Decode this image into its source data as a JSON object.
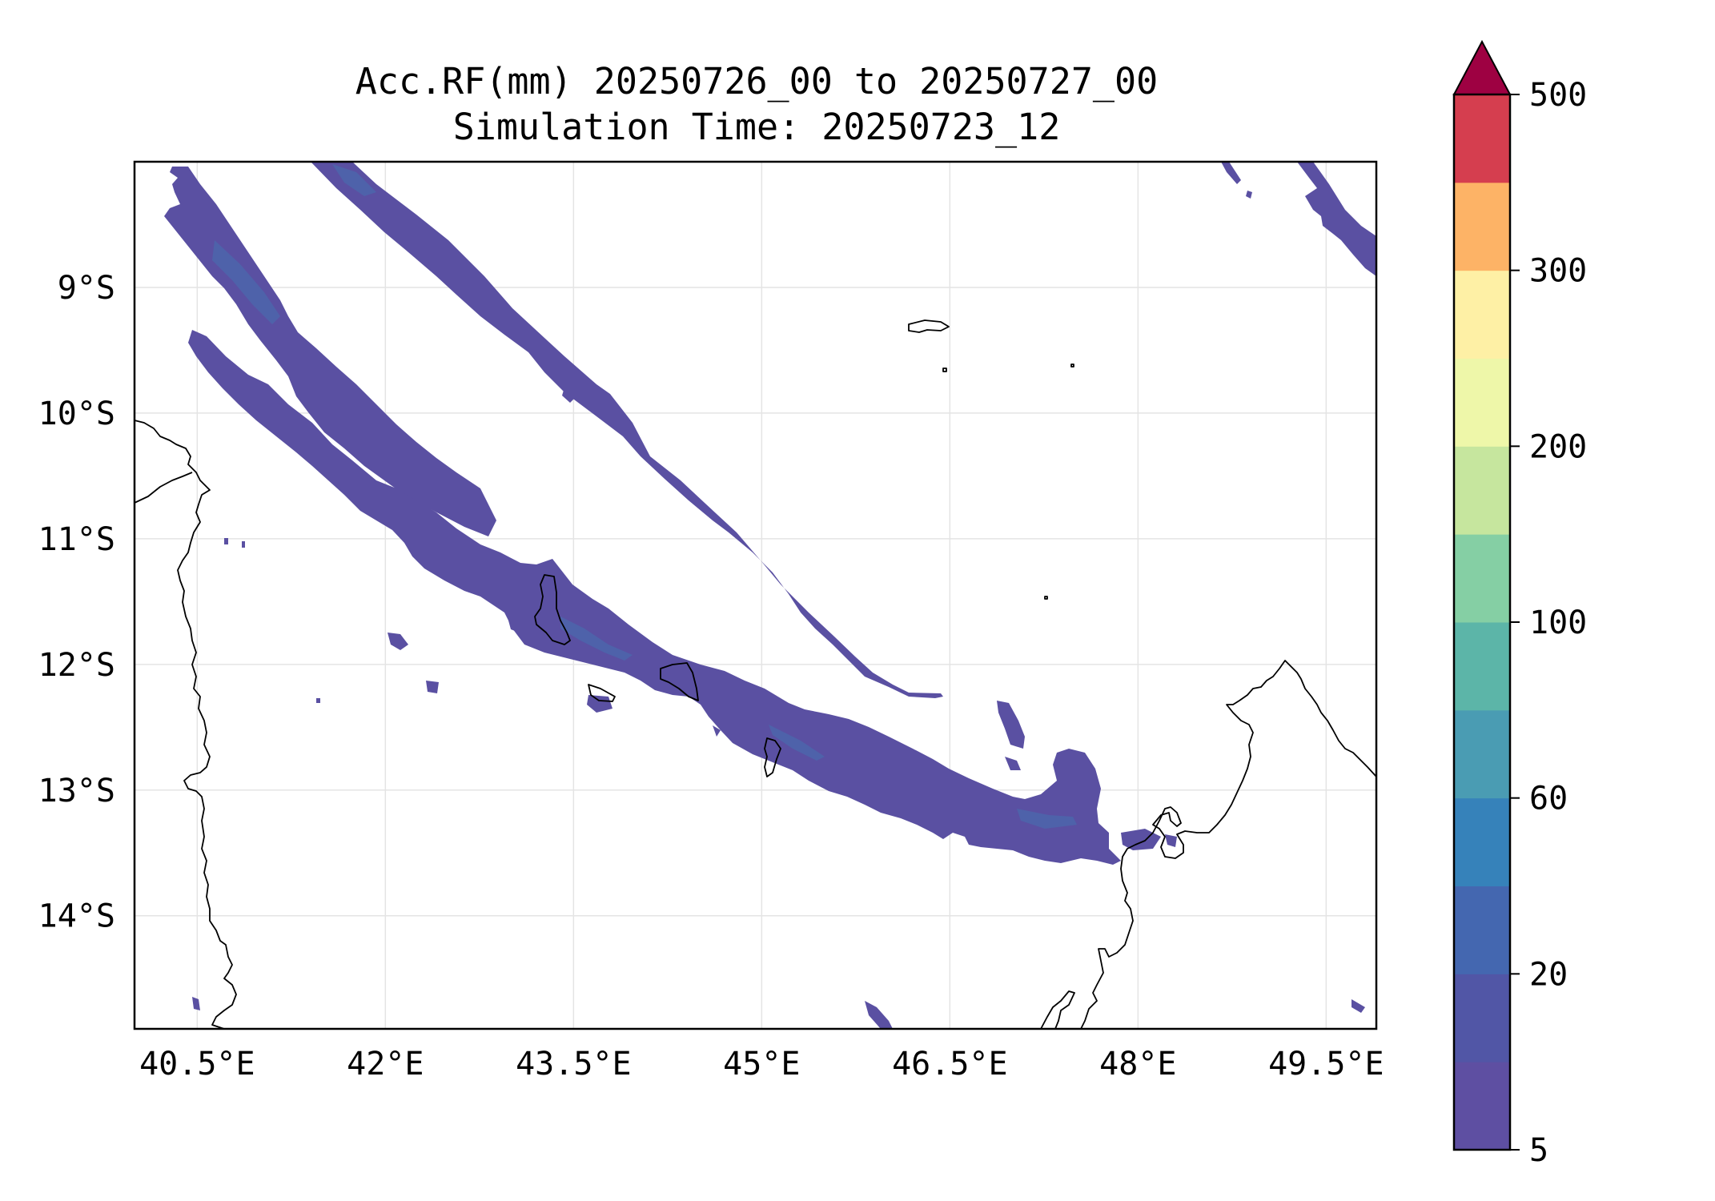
{
  "chart_data": {
    "type": "filled-contour-map",
    "title_line1": "Acc.RF(mm) 20250726_00 to 20250727_00",
    "title_line2": "Simulation Time: 20250723_12",
    "xticks": [
      {
        "value": 40.5,
        "label": "40.5°E"
      },
      {
        "value": 42.0,
        "label": "42°E"
      },
      {
        "value": 43.5,
        "label": "43.5°E"
      },
      {
        "value": 45.0,
        "label": "45°E"
      },
      {
        "value": 46.5,
        "label": "46.5°E"
      },
      {
        "value": 48.0,
        "label": "48°E"
      },
      {
        "value": 49.5,
        "label": "49.5°E"
      }
    ],
    "yticks": [
      {
        "value": -9,
        "label": "9°S"
      },
      {
        "value": -10,
        "label": "10°S"
      },
      {
        "value": -11,
        "label": "11°S"
      },
      {
        "value": -12,
        "label": "12°S"
      },
      {
        "value": -13,
        "label": "13°S"
      },
      {
        "value": -14,
        "label": "14°S"
      }
    ],
    "xlim": [
      40.0,
      49.9
    ],
    "ylim": [
      -14.9,
      -8.0
    ],
    "grid": true,
    "colorbar": {
      "levels": [
        5,
        10,
        20,
        40,
        60,
        80,
        100,
        150,
        200,
        250,
        300,
        400,
        500
      ],
      "tick_labels": [
        "5",
        "20",
        "60",
        "100",
        "200",
        "300",
        "500"
      ],
      "tick_levels": [
        5,
        20,
        60,
        100,
        200,
        300,
        500
      ],
      "colors": [
        "#5e4fa2",
        "#5156a6",
        "#4467b0",
        "#3682ba",
        "#4a9cb3",
        "#5cb5a8",
        "#85cfa4",
        "#c6e69e",
        "#eef7a9",
        "#fef0a5",
        "#fdb366",
        "#d53e4f"
      ],
      "extend_color": "#9e0142",
      "extend": "max"
    }
  }
}
